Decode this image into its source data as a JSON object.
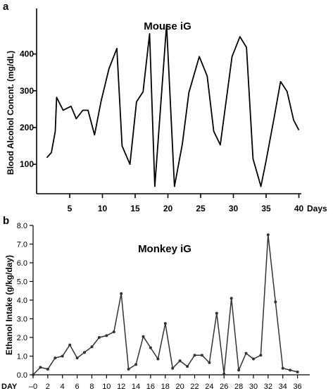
{
  "chart_data": [
    {
      "panel": "a",
      "type": "line",
      "title": "Mouse iG",
      "xlabel": "Days",
      "ylabel": "Blood Alcohol Concnt. (mg/dL)",
      "xlim": [
        0,
        40
      ],
      "ylim": [
        40,
        490
      ],
      "x_ticks": [
        5,
        10,
        15,
        20,
        25,
        30,
        35,
        40
      ],
      "y_ticks": [
        100,
        200,
        300,
        400
      ],
      "grid": false,
      "series": [
        {
          "x": [
            1.5,
            2.2,
            2.8,
            3.0,
            4.0,
            5.2,
            6.0,
            7.0,
            7.8,
            8.8,
            9.8,
            11.0,
            12.2,
            13.0,
            14.2,
            15.2,
            16.2,
            17.2,
            18.0,
            19.8,
            21.0,
            22.2,
            23.2,
            24.8,
            26.0,
            27.0,
            28.0,
            29.8,
            31.0,
            32.0,
            33.0,
            34.2,
            35.0,
            36.2,
            37.2,
            38.2,
            39.2,
            40.0
          ],
          "values": [
            118,
            132,
            190,
            282,
            247,
            258,
            224,
            247,
            247,
            180,
            272,
            360,
            415,
            150,
            100,
            270,
            297,
            455,
            40,
            480,
            40,
            155,
            295,
            393,
            340,
            190,
            153,
            393,
            447,
            418,
            115,
            40,
            110,
            225,
            325,
            298,
            220,
            193
          ]
        }
      ]
    },
    {
      "panel": "b",
      "type": "line",
      "title": "Monkey iG",
      "xlabel": "DAY",
      "ylabel": "Ethanol Intake (g/kg/day)",
      "xlim": [
        0,
        37
      ],
      "ylim": [
        0,
        8.0
      ],
      "x_ticks": [
        "–0",
        "2",
        "4",
        "6",
        "8",
        "10",
        "12",
        "14",
        "16",
        "18",
        "20",
        "22",
        "24",
        "26",
        "28",
        "30",
        "32",
        "34",
        "36"
      ],
      "y_ticks": [
        "0.0",
        "1.0",
        "2.0",
        "3.0",
        "4.0",
        "5.0",
        "6.0",
        "7.0",
        "8.0"
      ],
      "grid": false,
      "series": [
        {
          "x": [
            0,
            1,
            2,
            3,
            4,
            5,
            6,
            7,
            8,
            9,
            10,
            11,
            12,
            13,
            14,
            15,
            16,
            17,
            18,
            19,
            20,
            21,
            22,
            23,
            24,
            25,
            26,
            27,
            28,
            29,
            30,
            31,
            32,
            33,
            34,
            35,
            36
          ],
          "values": [
            0.0,
            0.4,
            0.3,
            0.9,
            1.0,
            1.6,
            0.9,
            1.2,
            1.5,
            2.0,
            2.1,
            2.3,
            4.35,
            0.3,
            0.55,
            2.05,
            1.45,
            0.85,
            2.75,
            0.35,
            0.75,
            0.45,
            1.05,
            1.05,
            0.65,
            3.3,
            0.05,
            4.1,
            0.25,
            1.15,
            0.85,
            1.05,
            7.5,
            3.9,
            0.35,
            0.25,
            0.15
          ]
        }
      ]
    }
  ]
}
